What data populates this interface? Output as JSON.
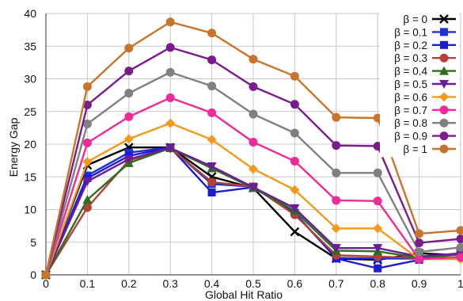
{
  "chart_data": {
    "type": "line",
    "title": "",
    "xlabel": "Global Hit Ratio",
    "ylabel": "Energy Gap",
    "xlim": [
      0,
      1
    ],
    "ylim": [
      0,
      40
    ],
    "x": [
      0,
      0.1,
      0.2,
      0.3,
      0.4,
      0.5,
      0.6,
      0.7,
      0.8,
      0.9,
      1
    ],
    "x_tick_labels": [
      "0",
      "0.1",
      "0.2",
      "0.3",
      "0.4",
      "0.5",
      "0.6",
      "0.7",
      "0.8",
      "0.9",
      "1"
    ],
    "y_ticks": [
      0,
      5,
      10,
      15,
      20,
      25,
      30,
      35,
      40
    ],
    "y_tick_labels": [
      "0",
      "5",
      "10",
      "15",
      "20",
      "25",
      "30",
      "35",
      "40"
    ],
    "grid": true,
    "legend_position": "top-right",
    "series": [
      {
        "name": "β = 0",
        "color": "#000000",
        "marker": "x",
        "values": [
          0,
          16.8,
          19.5,
          19.5,
          15.0,
          13.3,
          6.6,
          2.5,
          2.3,
          3.3,
          3.0
        ]
      },
      {
        "name": "β = 0.1",
        "color": "#1f2fd6",
        "marker": "square",
        "values": [
          0,
          15.2,
          18.7,
          19.5,
          13.9,
          13.5,
          9.4,
          2.6,
          2.5,
          2.5,
          3.3
        ]
      },
      {
        "name": "β = 0.2",
        "color": "#1c1cd0",
        "marker": "square",
        "values": [
          0,
          14.8,
          18.2,
          19.5,
          12.6,
          13.4,
          9.5,
          2.5,
          1.0,
          2.3,
          3.2
        ]
      },
      {
        "name": "β = 0.3",
        "color": "#b5403a",
        "marker": "circle",
        "values": [
          0,
          10.3,
          17.5,
          19.4,
          14.2,
          13.5,
          9.2,
          3.0,
          2.8,
          2.6,
          3.1
        ]
      },
      {
        "name": "β = 0.4",
        "color": "#2e6e1e",
        "marker": "triangle",
        "values": [
          0,
          11.5,
          17.1,
          19.4,
          16.3,
          13.3,
          9.8,
          3.7,
          3.6,
          2.6,
          3.1
        ]
      },
      {
        "name": "β = 0.5",
        "color": "#6a1c9a",
        "marker": "tri-down",
        "values": [
          0,
          14.3,
          17.7,
          19.4,
          16.6,
          13.4,
          10.2,
          4.1,
          4.1,
          2.8,
          3.3
        ]
      },
      {
        "name": "β = 0.6",
        "color": "#f39a1c",
        "marker": "diamond",
        "values": [
          0,
          17.3,
          20.8,
          23.2,
          20.7,
          16.2,
          13.0,
          7.1,
          7.1,
          2.4,
          2.4
        ]
      },
      {
        "name": "β = 0.7",
        "color": "#ee2b98",
        "marker": "circle",
        "values": [
          0,
          20.2,
          24.2,
          27.1,
          24.8,
          20.3,
          17.4,
          11.4,
          11.3,
          2.4,
          2.7
        ]
      },
      {
        "name": "β = 0.8",
        "color": "#808080",
        "marker": "circle",
        "values": [
          0,
          23.1,
          27.8,
          31.0,
          28.9,
          24.6,
          21.7,
          15.6,
          15.6,
          3.5,
          4.2
        ]
      },
      {
        "name": "β = 0.9",
        "color": "#7a1c8c",
        "marker": "circle",
        "values": [
          0,
          26.0,
          31.2,
          34.8,
          32.9,
          28.8,
          26.1,
          19.8,
          19.7,
          4.9,
          5.5
        ]
      },
      {
        "name": "β = 1",
        "color": "#c8742c",
        "marker": "circle",
        "values": [
          0,
          28.8,
          34.7,
          38.7,
          37.0,
          33.0,
          30.4,
          24.1,
          24.0,
          6.3,
          6.8
        ]
      }
    ]
  }
}
